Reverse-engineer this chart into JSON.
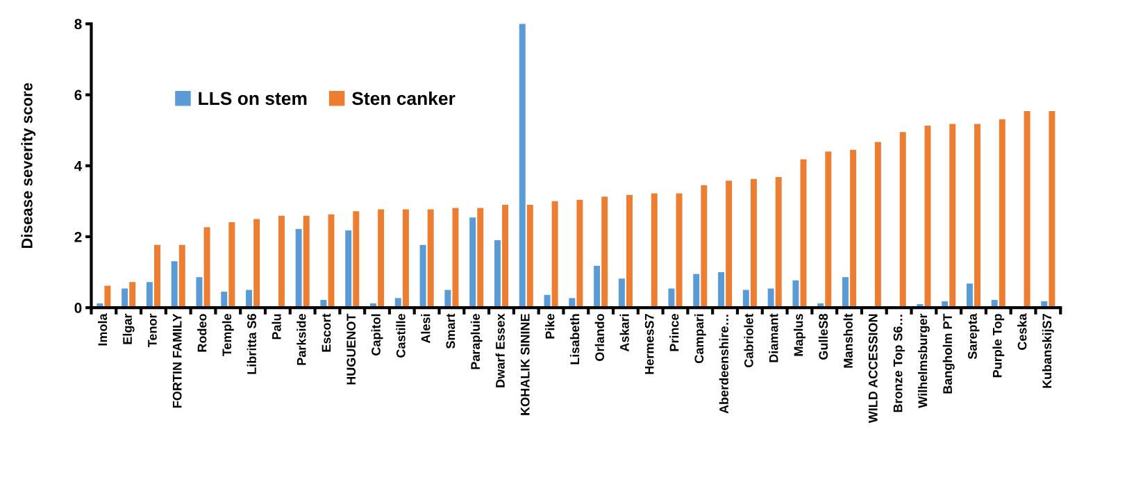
{
  "chart_data": {
    "type": "bar",
    "ylabel": "Disease severity score",
    "categories": [
      "Imola",
      "Elgar",
      "Tenor",
      "FORTIN FAMILY",
      "Rodeo",
      "Temple",
      "Libritta S6",
      "Palu",
      "Parkside",
      "Escort",
      "HUGUENOT",
      "Capitol",
      "Castille",
      "Alesi",
      "Smart",
      "Parapluie",
      "Dwarf Essex",
      "KOHALIK SININE",
      "Pike",
      "Lisabeth",
      "Orlando",
      "Askari",
      "HermesS7",
      "Prince",
      "Campari",
      "Aberdeenshire…",
      "Cabriolet",
      "Diamant",
      "Maplus",
      "GulleS8",
      "Mansholt",
      "WILD ACCESSION",
      "Bronze Top S6…",
      "Wilhelmsburger",
      "Bangholm PT",
      "Sarepta",
      "Purple Top",
      "Ceska",
      "KubanskijS7"
    ],
    "series": [
      {
        "name": "LLS on stem",
        "color": "#5b9bd5",
        "values": [
          0.12,
          0.54,
          0.72,
          1.31,
          0.86,
          0.45,
          0.5,
          0,
          2.22,
          0.22,
          2.18,
          0.12,
          0.27,
          1.77,
          0.5,
          2.54,
          1.9,
          8.0,
          0.36,
          0.27,
          1.18,
          0.82,
          0,
          0.54,
          0.95,
          1.0,
          0.5,
          0.54,
          0.77,
          0.12,
          0.86,
          0,
          0,
          0.1,
          0.18,
          0.68,
          0.22,
          0,
          0.18
        ]
      },
      {
        "name": "Sten canker",
        "color": "#ed7d31",
        "values": [
          0.62,
          0.72,
          1.77,
          1.77,
          2.27,
          2.41,
          2.5,
          2.59,
          2.59,
          2.63,
          2.72,
          2.77,
          2.77,
          2.77,
          2.81,
          2.81,
          2.9,
          2.9,
          3.0,
          3.04,
          3.13,
          3.18,
          3.22,
          3.22,
          3.45,
          3.58,
          3.63,
          3.68,
          4.18,
          4.4,
          4.45,
          4.67,
          4.95,
          5.13,
          5.18,
          5.18,
          5.31,
          5.54,
          5.54
        ]
      }
    ],
    "ylim": [
      0,
      8
    ],
    "yticks": [
      0,
      2,
      4,
      6,
      8
    ],
    "grid": false,
    "legend": "top left"
  }
}
